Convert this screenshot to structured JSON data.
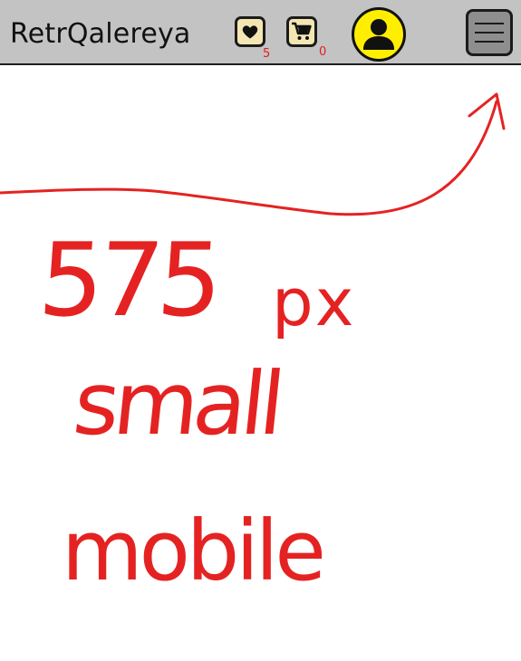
{
  "header": {
    "brand": "RetrQalereya",
    "wishlist": {
      "icon": "heart-icon",
      "count": "5"
    },
    "cart": {
      "icon": "cart-icon",
      "count": "0"
    },
    "account": {
      "icon": "user-avatar-icon"
    },
    "menu": {
      "icon": "hamburger-menu-icon"
    }
  },
  "annotation": {
    "size": "575",
    "unit": "px",
    "size_label": "small",
    "device_label": "mobile",
    "arrow_icon": "arrow-icon"
  },
  "colors": {
    "header_bg": "#c3c3c3",
    "icon_tile": "#f4e6b3",
    "avatar_bg": "#ffee00",
    "menu_bg": "#8e8e8e",
    "badge_text": "#e02020",
    "annotation": "#e52222"
  }
}
